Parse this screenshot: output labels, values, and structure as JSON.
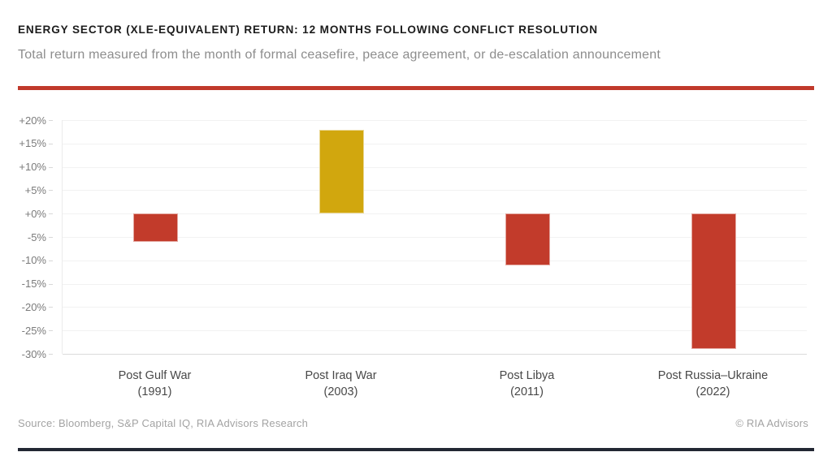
{
  "header": {
    "title": "ENERGY SECTOR (XLE-EQUIVALENT) RETURN: 12 MONTHS FOLLOWING CONFLICT RESOLUTION",
    "subtitle": "Total return measured from the month of formal ceasefire, peace agreement, or de-escalation announcement"
  },
  "footer": {
    "source": "Source: Bloomberg, S&P Capital IQ, RIA Advisors Research",
    "copyright": "© RIA Advisors"
  },
  "colors": {
    "accent_rule": "#c0392b",
    "negative_bar": "#c23b2b",
    "positive_bar": "#d1a70e",
    "footer_rule": "#222733"
  },
  "chart_data": {
    "type": "bar",
    "title": "Energy sector (XLE-equivalent) return: 12 months following conflict resolution",
    "categories": [
      "Post Gulf War",
      "Post Iraq War",
      "Post Libya",
      "Post Russia–Ukraine"
    ],
    "category_sublabels": [
      "(1991)",
      "(2003)",
      "(2011)",
      "(2022)"
    ],
    "values": [
      -6,
      18,
      -11,
      -29
    ],
    "bar_colors": [
      "#c23b2b",
      "#d1a70e",
      "#c23b2b",
      "#c23b2b"
    ],
    "unit": "%",
    "ylim": [
      -30,
      20
    ],
    "ytick_labels": [
      "+20%",
      "+15%",
      "+10%",
      "+5%",
      "+0%",
      "-5%",
      "-10%",
      "-15%",
      "-20%",
      "-25%",
      "-30%"
    ],
    "grid": true,
    "legend_position": "none",
    "xlabel": "",
    "ylabel": ""
  }
}
